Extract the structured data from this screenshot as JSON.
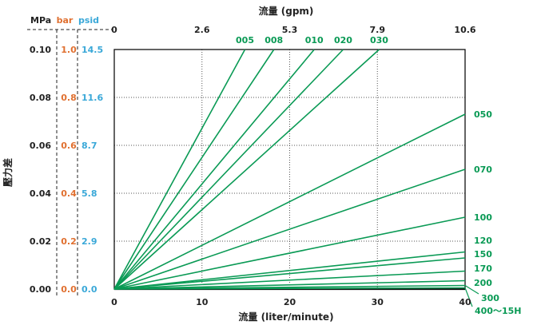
{
  "chart_data": {
    "type": "line",
    "x_bottom_label": "流量 (liter/minute)",
    "x_top_label": "流量 (gpm)",
    "y_label": "壓力差",
    "y_units": [
      "MPa",
      "bar",
      "psid"
    ],
    "x_bottom_ticks": [
      "0",
      "10",
      "20",
      "30",
      "40"
    ],
    "x_top_ticks": [
      "0",
      "2.6",
      "5.3",
      "7.9",
      "10.6"
    ],
    "xlim": [
      0,
      40
    ],
    "ylim_mpa": [
      0,
      0.1
    ],
    "y_ticks_mpa": [
      "0.00",
      "0.02",
      "0.04",
      "0.06",
      "0.08",
      "0.10"
    ],
    "y_ticks_bar": [
      "0.0",
      "0.2",
      "0.4",
      "0.6",
      "0.8",
      "1.0"
    ],
    "y_ticks_psid": [
      "0.0",
      "2.9",
      "5.8",
      "8.7",
      "11.6",
      "14.5"
    ],
    "grid": "dotted",
    "colors": {
      "series": "#0a9a55",
      "bar_axis": "#e07030",
      "psid_axis": "#3aa8d8",
      "text": "#222222"
    },
    "series": [
      {
        "name": "005",
        "end": [
          14.9,
          0.1
        ]
      },
      {
        "name": "008",
        "end": [
          18.2,
          0.1
        ]
      },
      {
        "name": "010",
        "end": [
          22.8,
          0.1
        ]
      },
      {
        "name": "020",
        "end": [
          26.1,
          0.1
        ]
      },
      {
        "name": "030",
        "end": [
          30.2,
          0.1
        ]
      },
      {
        "name": "050",
        "end": [
          40,
          0.073
        ]
      },
      {
        "name": "070",
        "end": [
          40,
          0.05
        ]
      },
      {
        "name": "100",
        "end": [
          40,
          0.03
        ]
      },
      {
        "name": "120",
        "end": [
          40,
          0.0155
        ]
      },
      {
        "name": "150",
        "end": [
          40,
          0.013
        ]
      },
      {
        "name": "170",
        "end": [
          40,
          0.0075
        ]
      },
      {
        "name": "200",
        "end": [
          40,
          0.0035
        ]
      },
      {
        "name": "300",
        "end": [
          40,
          0.0015
        ]
      },
      {
        "name": "400～15H",
        "end": [
          40,
          0.0005
        ]
      }
    ]
  }
}
